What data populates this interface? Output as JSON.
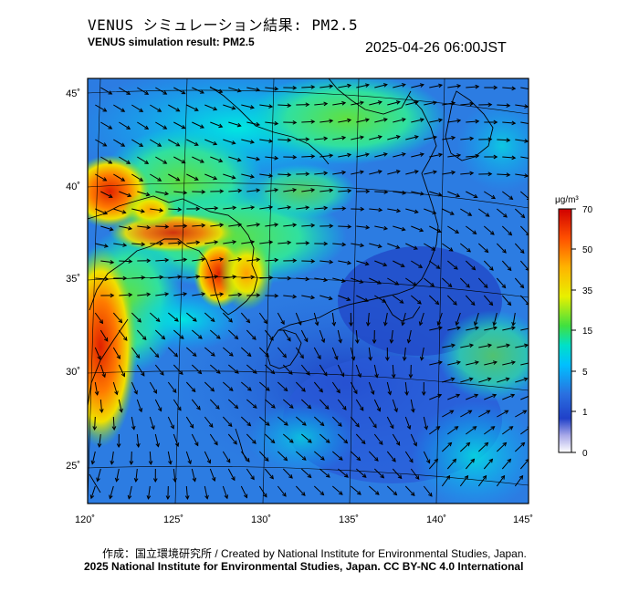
{
  "header": {
    "title_jp": "VENUS シミュレーション結果: PM2.5",
    "title_en": "VENUS simulation result: PM2.5",
    "timestamp": "2025-04-26 06:00JST"
  },
  "map": {
    "lon_range": [
      120,
      145
    ],
    "lat_range": [
      23,
      46
    ],
    "lon_ticks": [
      "120˚",
      "125˚",
      "130˚",
      "135˚",
      "140˚",
      "145˚"
    ],
    "lat_ticks": [
      "45˚",
      "40˚",
      "35˚",
      "30˚",
      "25˚"
    ]
  },
  "colorbar": {
    "unit": "μg/m³",
    "tick_labels": [
      "70",
      "50",
      "35",
      "15",
      "5",
      "1",
      "0"
    ],
    "colors": [
      "#d80000",
      "#ff5a00",
      "#ffb000",
      "#f0f000",
      "#40e040",
      "#00e0c0",
      "#00c8ff",
      "#2a78e0",
      "#2040c8",
      "#c8c8f0",
      "#ffffff"
    ]
  },
  "footer": {
    "credit_line1": "作成：国立環境研究所 / Created by National Institute for Environmental Studies, Japan.",
    "credit_line2": "2025 National Institute for Environmental Studies, Japan. CC BY-NC 4.0 International"
  }
}
